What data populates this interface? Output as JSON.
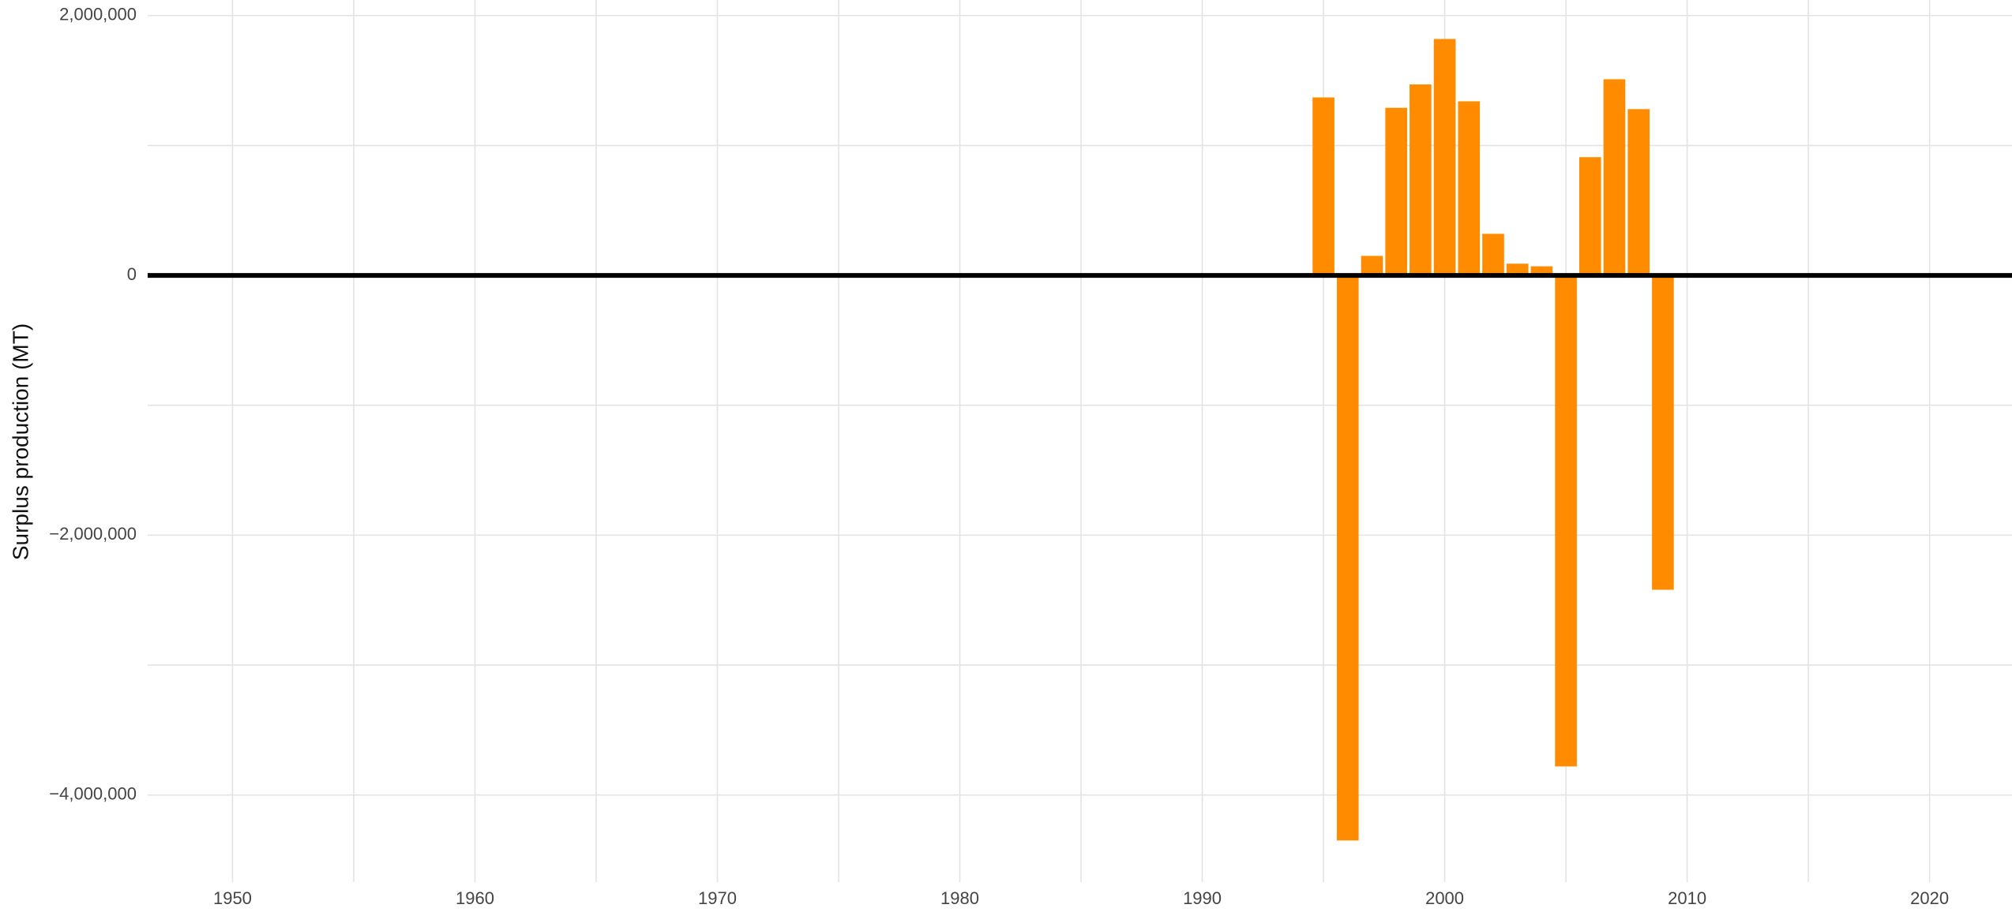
{
  "chart_data": {
    "type": "bar",
    "y_label": "Surplus production (MT)",
    "x": [
      1995,
      1996,
      1997,
      1998,
      1999,
      2000,
      2001,
      2002,
      2003,
      2004,
      2005,
      2006,
      2007,
      2008,
      2009
    ],
    "values": [
      1370000,
      -4350000,
      150000,
      1290000,
      1470000,
      1820000,
      1340000,
      320000,
      90000,
      70000,
      -3780000,
      910000,
      1510000,
      1280000,
      -2420000
    ],
    "color": "#ff8c00",
    "xlim": [
      1946.5,
      2023.4
    ],
    "xticks": [
      1950,
      1960,
      1970,
      1980,
      1990,
      2000,
      2010,
      2020
    ],
    "x_minor_ticks": [
      1955,
      1965,
      1975,
      1985,
      1995,
      2005,
      2015
    ],
    "ylim": [
      -4670000,
      2120000
    ],
    "yticks": [
      {
        "value": -4000000,
        "label": "−4,000,000"
      },
      {
        "value": -2000000,
        "label": "−2,000,000"
      },
      0,
      {
        "value": 2000000,
        "label": "2,000,000"
      }
    ],
    "y_minor_ticks": [
      -3000000,
      -1000000,
      1000000
    ],
    "grid": true
  }
}
